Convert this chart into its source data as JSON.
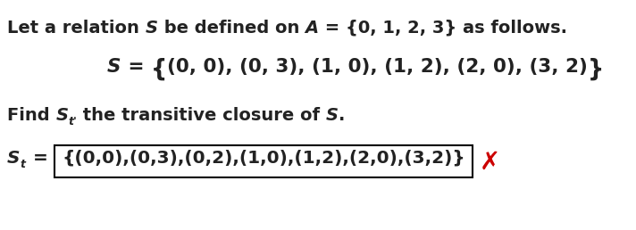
{
  "line1_plain1": "Let a relation ",
  "line1_italic1": "S",
  "line1_plain2": " be defined on ",
  "line1_italic2": "A",
  "line1_plain3": " = {0, 1, 2, 3} as follows.",
  "line2_italic": "S",
  "line2_eq": " = ",
  "line2_lbrace": "{",
  "line2_content": "(0, 0), (0, 3), (1, 0), (1, 2), (2, 0), (3, 2)",
  "line2_rbrace": "}",
  "line3_plain1": "Find ",
  "line3_italic1": "S",
  "line3_sub": "t'",
  "line3_plain2": " the transitive closure of ",
  "line3_italic2": "S",
  "line3_plain3": ".",
  "line4_italic": "S",
  "line4_sub": "t",
  "line4_eq": " = ",
  "line4_box_content": "{(0,0),(0,3),(0,2),(1,0),(1,2),(2,0),(3,2)}",
  "bg_color": "#ffffff",
  "text_color": "#222222",
  "box_color": "#000000",
  "cross_color": "#cc0000",
  "figsize": [
    7.12,
    2.58
  ],
  "dpi": 100
}
